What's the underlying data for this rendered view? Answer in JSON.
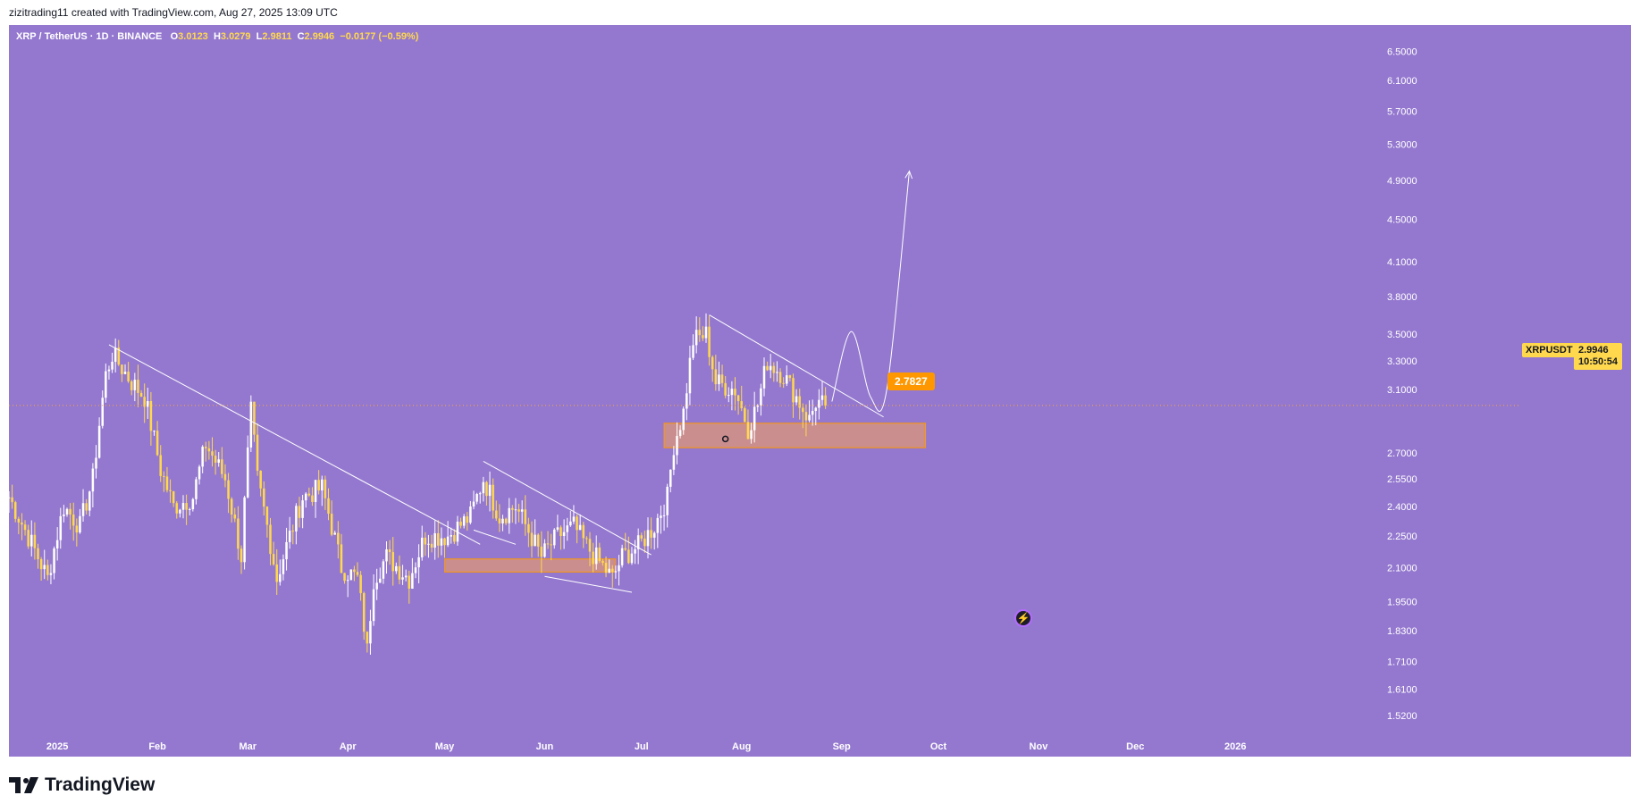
{
  "header": {
    "attribution": "zizitrading11 created with TradingView.com, Aug 27, 2025 13:09 UTC"
  },
  "legend": {
    "symbol": "XRP / TetherUS · 1D · BINANCE",
    "open_label": "O",
    "open": "3.0123",
    "high_label": "H",
    "high": "3.0279",
    "low_label": "L",
    "low": "2.9811",
    "close_label": "C",
    "close": "2.9946",
    "change": "−0.0177 (−0.59%)"
  },
  "price_tag": {
    "symbol": "XRPUSDT",
    "price": "2.9946",
    "countdown": "10:50:54"
  },
  "zone_label": "2.7827",
  "footer": {
    "brand": "TradingView"
  },
  "colors": {
    "background": "#9478cf",
    "candle_up": "#ffffff",
    "candle_down": "#ffd84d",
    "zone": "#f5a05a",
    "accent": "#ff9800"
  },
  "chart_data": {
    "type": "candlestick",
    "symbol": "XRP / TetherUS",
    "interval": "1D",
    "exchange": "BINANCE",
    "scale": "log",
    "ylim": [
      1.49,
      6.75
    ],
    "y_ticks": [
      "6.5000",
      "6.1000",
      "5.7000",
      "5.3000",
      "4.9000",
      "4.5000",
      "4.1000",
      "3.8000",
      "3.5000",
      "3.3000",
      "3.1000",
      "2.7000",
      "2.5500",
      "2.4000",
      "2.2500",
      "2.1000",
      "1.9500",
      "1.8300",
      "1.7100",
      "1.6100",
      "1.5200"
    ],
    "x_ticks": [
      "2025",
      "Feb",
      "Mar",
      "Apr",
      "May",
      "Jun",
      "Jul",
      "Aug",
      "Sep",
      "Oct",
      "Nov",
      "Dec",
      "2026"
    ],
    "x_range": [
      "2024-12-17",
      "2026-02-04"
    ],
    "last_price": 2.9946,
    "series": [
      {
        "anchors": [
          [
            "2024-12-17",
            2.45
          ],
          [
            "2024-12-22",
            2.28
          ],
          [
            "2024-12-29",
            2.05
          ],
          [
            "2025-01-03",
            2.4
          ],
          [
            "2025-01-08",
            2.3
          ],
          [
            "2025-01-12",
            2.55
          ],
          [
            "2025-01-16",
            3.2
          ],
          [
            "2025-01-18",
            3.35
          ],
          [
            "2025-01-24",
            3.15
          ],
          [
            "2025-01-28",
            3.05
          ],
          [
            "2025-02-02",
            2.6
          ],
          [
            "2025-02-06",
            2.4
          ],
          [
            "2025-02-12",
            2.45
          ],
          [
            "2025-02-16",
            2.75
          ],
          [
            "2025-02-22",
            2.55
          ],
          [
            "2025-02-27",
            2.15
          ],
          [
            "2025-03-02",
            2.95
          ],
          [
            "2025-03-04",
            2.55
          ],
          [
            "2025-03-10",
            2.05
          ],
          [
            "2025-03-18",
            2.45
          ],
          [
            "2025-03-24",
            2.5
          ],
          [
            "2025-03-30",
            2.1
          ],
          [
            "2025-04-04",
            2.05
          ],
          [
            "2025-04-07",
            1.75
          ],
          [
            "2025-04-09",
            2.05
          ],
          [
            "2025-04-13",
            2.15
          ],
          [
            "2025-04-20",
            2.05
          ],
          [
            "2025-04-25",
            2.25
          ],
          [
            "2025-05-02",
            2.25
          ],
          [
            "2025-05-09",
            2.35
          ],
          [
            "2025-05-13",
            2.55
          ],
          [
            "2025-05-18",
            2.35
          ],
          [
            "2025-05-23",
            2.4
          ],
          [
            "2025-05-31",
            2.15
          ],
          [
            "2025-06-05",
            2.25
          ],
          [
            "2025-06-10",
            2.3
          ],
          [
            "2025-06-14",
            2.2
          ],
          [
            "2025-06-22",
            2.05
          ],
          [
            "2025-06-25",
            2.15
          ],
          [
            "2025-06-30",
            2.2
          ],
          [
            "2025-07-05",
            2.3
          ],
          [
            "2025-07-09",
            2.45
          ],
          [
            "2025-07-11",
            2.75
          ],
          [
            "2025-07-14",
            2.95
          ],
          [
            "2025-07-17",
            3.45
          ],
          [
            "2025-07-21",
            3.5
          ],
          [
            "2025-07-24",
            3.15
          ],
          [
            "2025-07-30",
            3.1
          ],
          [
            "2025-08-03",
            2.85
          ],
          [
            "2025-08-06",
            3.0
          ],
          [
            "2025-08-09",
            3.3
          ],
          [
            "2025-08-14",
            3.2
          ],
          [
            "2025-08-18",
            3.05
          ],
          [
            "2025-08-22",
            2.9
          ],
          [
            "2025-08-24",
            3.02
          ],
          [
            "2025-08-27",
            2.9946
          ]
        ]
      }
    ],
    "trendlines": [
      {
        "from": [
          "2025-01-17",
          3.42
        ],
        "to": [
          "2025-05-12",
          2.21
        ]
      },
      {
        "from": [
          "2025-05-13",
          2.65
        ],
        "to": [
          "2025-07-04",
          2.16
        ]
      },
      {
        "from": [
          "2025-05-10",
          2.28
        ],
        "to": [
          "2025-05-23",
          2.21
        ]
      },
      {
        "from": [
          "2025-06-01",
          2.06
        ],
        "to": [
          "2025-06-28",
          1.99
        ]
      },
      {
        "from": [
          "2025-07-22",
          3.65
        ],
        "to": [
          "2025-09-14",
          2.92
        ]
      }
    ],
    "zones": [
      {
        "x": [
          "2025-05-01",
          "2025-06-23"
        ],
        "y": [
          2.08,
          2.14
        ]
      },
      {
        "x": [
          "2025-07-08",
          "2025-09-27"
        ],
        "y": [
          2.73,
          2.88
        ],
        "label": "2.7827"
      }
    ],
    "projection": [
      [
        "2025-08-29",
        3.02
      ],
      [
        "2025-09-04",
        3.52
      ],
      [
        "2025-09-10",
        3.05
      ],
      [
        "2025-09-15",
        3.1
      ],
      [
        "2025-09-22",
        5.0
      ]
    ]
  }
}
